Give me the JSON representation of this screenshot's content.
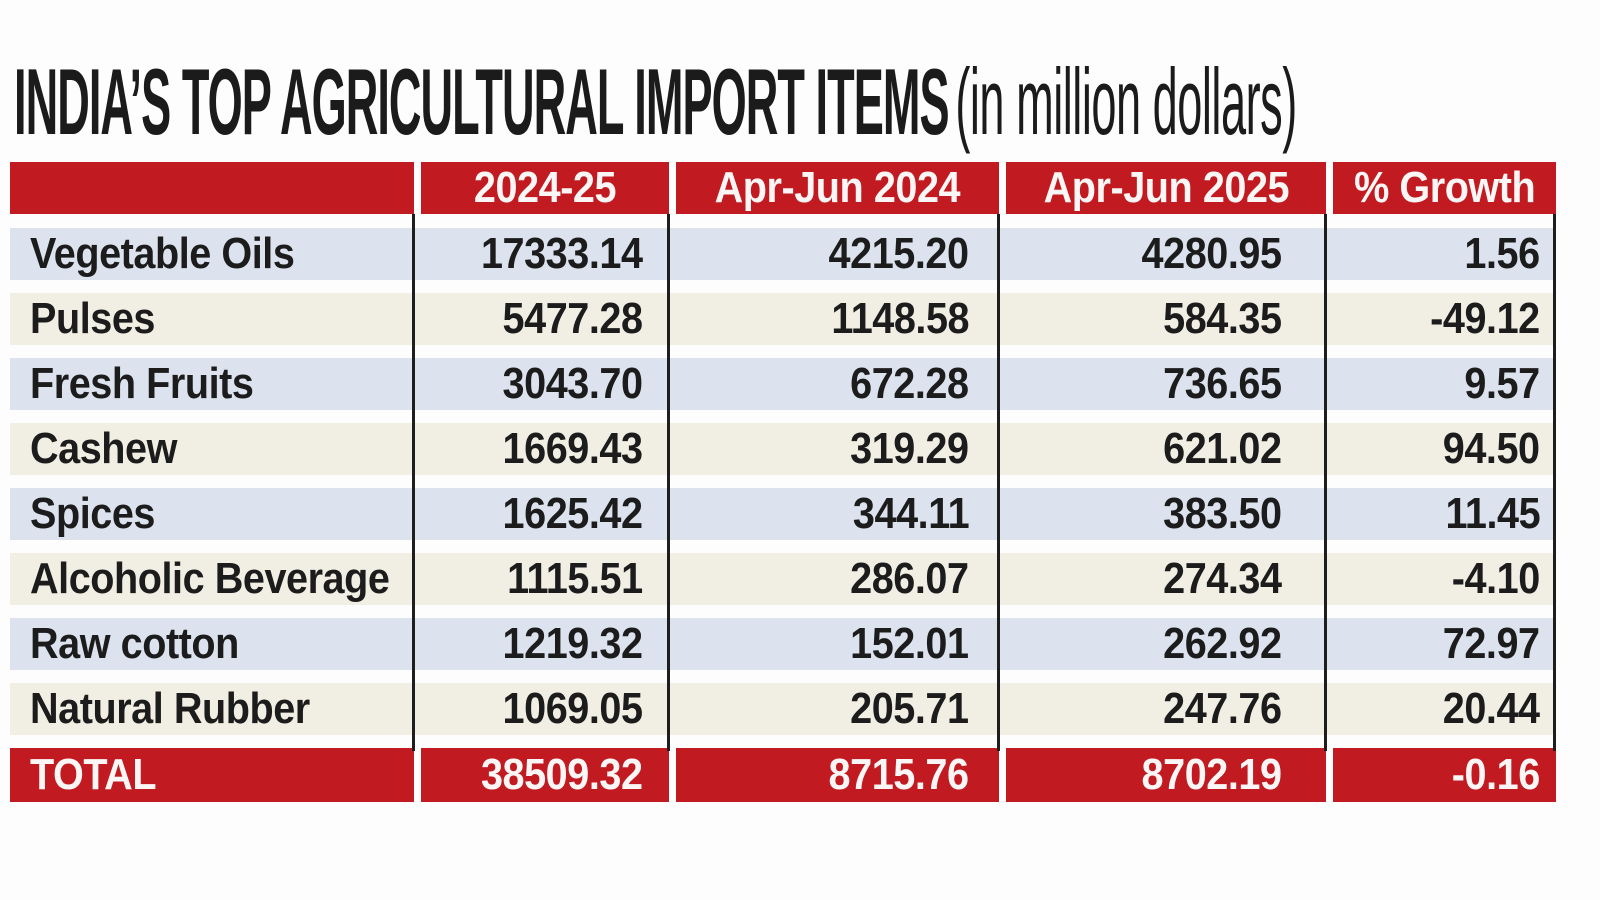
{
  "title": {
    "main": "INDIA’S TOP AGRICULTURAL IMPORT ITEMS",
    "unit": "(in million dollars)"
  },
  "table": {
    "columns": {
      "item": "",
      "fy": "2024-25",
      "q2024": "Apr-Jun 2024",
      "q2025": "Apr-Jun 2025",
      "growth": "% Growth"
    },
    "rows": [
      {
        "label": "Vegetable Oils",
        "fy": "17333.14",
        "q2024": "4215.20",
        "q2025": "4280.95",
        "growth": "1.56"
      },
      {
        "label": "Pulses",
        "fy": "5477.28",
        "q2024": "1148.58",
        "q2025": "584.35",
        "growth": "-49.12"
      },
      {
        "label": "Fresh Fruits",
        "fy": "3043.70",
        "q2024": "672.28",
        "q2025": "736.65",
        "growth": "9.57"
      },
      {
        "label": "Cashew",
        "fy": "1669.43",
        "q2024": "319.29",
        "q2025": "621.02",
        "growth": "94.50"
      },
      {
        "label": "Spices",
        "fy": "1625.42",
        "q2024": "344.11",
        "q2025": "383.50",
        "growth": "11.45"
      },
      {
        "label": "Alcoholic Beverage",
        "fy": "1115.51",
        "q2024": "286.07",
        "q2025": "274.34",
        "growth": "-4.10"
      },
      {
        "label": "Raw cotton",
        "fy": "1219.32",
        "q2024": "152.01",
        "q2025": "262.92",
        "growth": "72.97"
      },
      {
        "label": "Natural Rubber",
        "fy": "1069.05",
        "q2024": "205.71",
        "q2025": "247.76",
        "growth": "20.44"
      }
    ],
    "total": {
      "label": "TOTAL",
      "fy": "38509.32",
      "q2024": "8715.76",
      "q2025": "8702.19",
      "growth": "-0.16"
    }
  },
  "colors": {
    "header_red": "#c11b21",
    "row_blue": "#dce3ee",
    "row_cream": "#f1eee3",
    "divider_black": "#1e1e1e",
    "text_dark": "#1c1c1c",
    "text_white": "#fbf6f6"
  },
  "chart_data": {
    "type": "table",
    "title": "INDIA’S TOP AGRICULTURAL IMPORT ITEMS (in million dollars)",
    "columns": [
      "Item",
      "2024-25",
      "Apr-Jun 2024",
      "Apr-Jun 2025",
      "% Growth"
    ],
    "rows": [
      [
        "Vegetable Oils",
        17333.14,
        4215.2,
        4280.95,
        1.56
      ],
      [
        "Pulses",
        5477.28,
        1148.58,
        584.35,
        -49.12
      ],
      [
        "Fresh Fruits",
        3043.7,
        672.28,
        736.65,
        9.57
      ],
      [
        "Cashew",
        1669.43,
        319.29,
        621.02,
        94.5
      ],
      [
        "Spices",
        1625.42,
        344.11,
        383.5,
        11.45
      ],
      [
        "Alcoholic Beverage",
        1115.51,
        286.07,
        274.34,
        -4.1
      ],
      [
        "Raw cotton",
        1219.32,
        152.01,
        262.92,
        72.97
      ],
      [
        "Natural Rubber",
        1069.05,
        205.71,
        247.76,
        20.44
      ],
      [
        "TOTAL",
        38509.32,
        8715.76,
        8702.19,
        -0.16
      ]
    ]
  }
}
